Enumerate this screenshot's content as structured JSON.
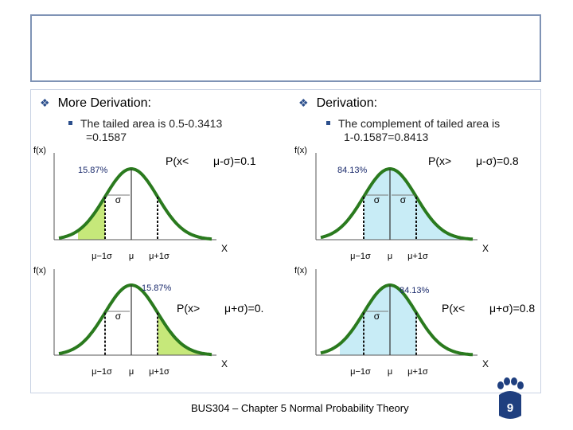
{
  "left": {
    "heading": "More Derivation:",
    "sub_line1": "The tailed area is 0.5-0.3413",
    "sub_line2": "=0.1587"
  },
  "right": {
    "heading": "Derivation:",
    "sub_line1": "The complement of tailed area is",
    "sub_line2": "1-0.1587=0.8413"
  },
  "panels": [
    {
      "ylabel": "f(x)",
      "pct": "15.87%",
      "prob_prefix": "P(x<",
      "prob_expr": "μ-σ)=0.1",
      "xlabel": "X",
      "tick1": "μ−1σ",
      "tick2": "μ",
      "tick3": "μ+1σ",
      "sigma": "σ",
      "shade": "left-tail"
    },
    {
      "ylabel": "f(x)",
      "pct": "84.13%",
      "prob_prefix": "P(x>",
      "prob_expr": "μ-σ)=0.8",
      "xlabel": "X",
      "tick1": "μ−1σ",
      "tick2": "μ",
      "tick3": "μ+1σ",
      "sigma": "σ",
      "sigma2": "σ",
      "shade": "right-of-minus"
    },
    {
      "ylabel": "f(x)",
      "pct": "15.87%",
      "prob_prefix": "P(x>",
      "prob_expr": "μ+σ)=0.",
      "xlabel": "X",
      "tick1": "μ−1σ",
      "tick2": "μ",
      "tick3": "μ+1σ",
      "sigma": "σ",
      "shade": "right-tail"
    },
    {
      "ylabel": "f(x)",
      "pct": "84.13%",
      "prob_prefix": "P(x<",
      "prob_expr": "μ+σ)=0.8",
      "xlabel": "X",
      "tick1": "μ−1σ",
      "tick2": "μ",
      "tick3": "μ+1σ",
      "sigma": "σ",
      "shade": "left-of-plus"
    }
  ],
  "footer": "BUS304 – Chapter 5 Normal Probability Theory",
  "page_number": "9",
  "colors": {
    "curve": "#2a7a1e",
    "left_shade": "#c6e87a",
    "right_shade": "#c8ecf6",
    "box_border": "#7f93b5",
    "accent": "#2c4f8c",
    "paw": "#1f3f7f"
  }
}
